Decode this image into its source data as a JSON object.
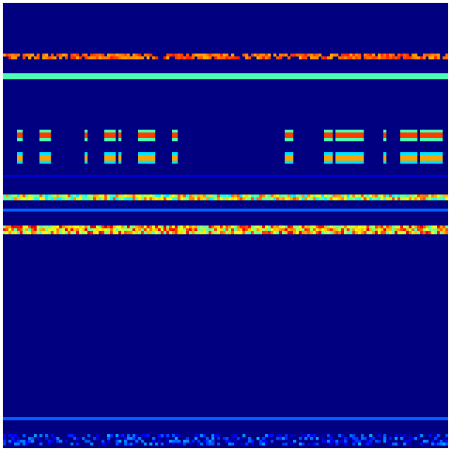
{
  "chart_data": {
    "type": "heatmap",
    "title": "",
    "xlabel": "",
    "ylabel": "",
    "colormap": "jet",
    "value_range": [
      0,
      1
    ],
    "grid_columns": 158,
    "grid_rows": 158,
    "background_value": 0.0,
    "grid": false,
    "legend": "none",
    "bands": [
      {
        "rows": [
          18,
          19
        ],
        "value": 0.85,
        "pattern": "dashed"
      },
      {
        "rows": [
          25,
          26
        ],
        "value": 0.45,
        "pattern": "solid"
      },
      {
        "rows": [
          45,
          48
        ],
        "value": 1.0,
        "pattern": "blocks"
      },
      {
        "rows": [
          53,
          56
        ],
        "value": 0.9,
        "pattern": "blocks"
      },
      {
        "rows": [
          61,
          61
        ],
        "value": 0.08,
        "pattern": "solid"
      },
      {
        "rows": [
          68,
          69
        ],
        "value": 0.8,
        "pattern": "noisy"
      },
      {
        "rows": [
          73,
          73
        ],
        "value": 0.22,
        "pattern": "solid"
      },
      {
        "rows": [
          79,
          81
        ],
        "value": 0.9,
        "pattern": "noisy"
      },
      {
        "rows": [
          147,
          147
        ],
        "value": 0.22,
        "pattern": "solid"
      },
      {
        "rows": [
          153,
          156
        ],
        "value": 0.25,
        "pattern": "faint"
      }
    ],
    "block_columns": [
      [
        5,
        6
      ],
      [
        13,
        16
      ],
      [
        29,
        29
      ],
      [
        36,
        39
      ],
      [
        41,
        41
      ],
      [
        48,
        53
      ],
      [
        60,
        61
      ],
      [
        100,
        102
      ],
      [
        114,
        116
      ],
      [
        118,
        127
      ],
      [
        135,
        135
      ],
      [
        141,
        146
      ],
      [
        148,
        155
      ]
    ]
  }
}
